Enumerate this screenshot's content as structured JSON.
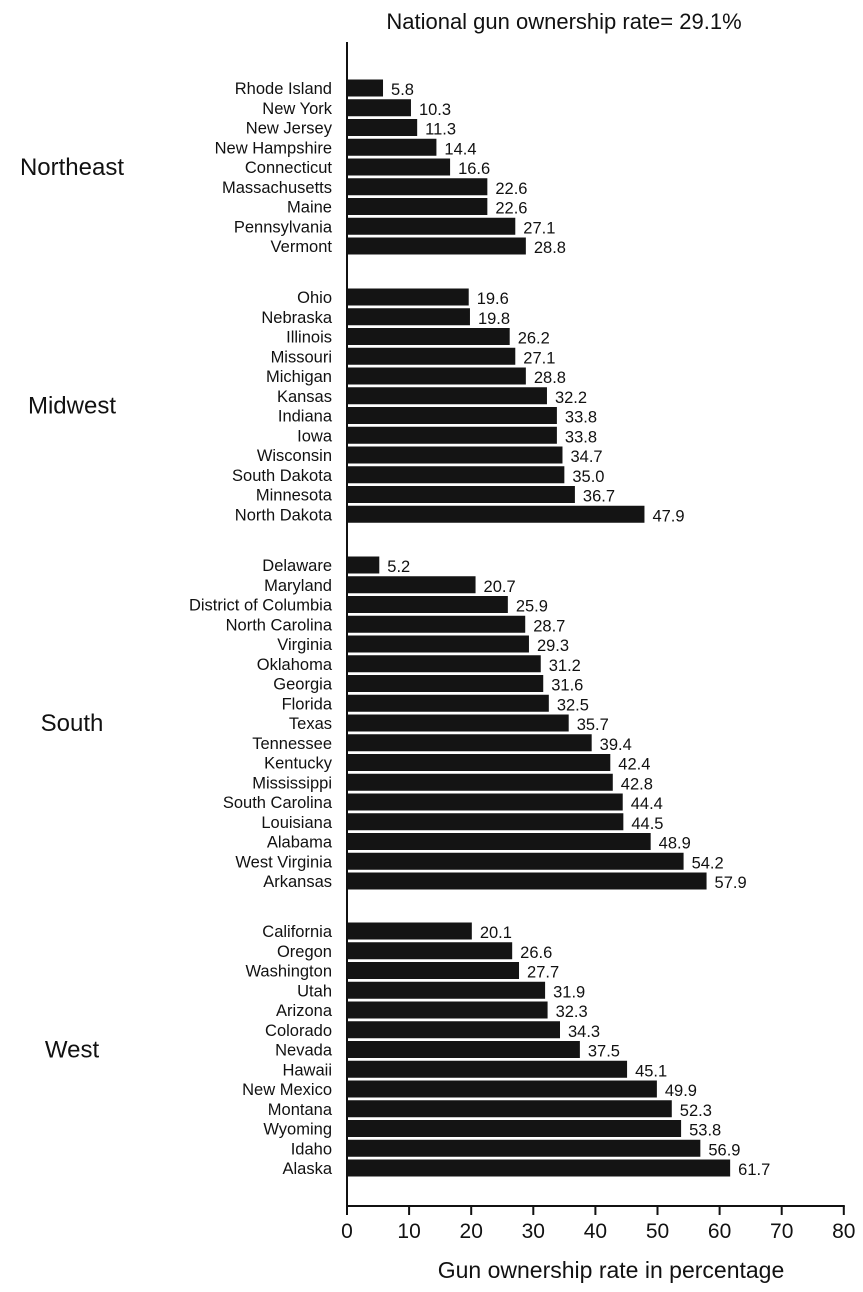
{
  "chart_data": {
    "type": "bar",
    "orientation": "horizontal",
    "title": "National gun ownership rate= 29.1%",
    "xlabel": "Gun ownership rate in percentage",
    "ylabel": "",
    "xlim": [
      0,
      80
    ],
    "xticks": [
      "0",
      "10",
      "20",
      "30",
      "40",
      "50",
      "60",
      "70",
      "80"
    ],
    "grid": false,
    "bar_color": "#141414",
    "groups": [
      {
        "name": "Northeast",
        "categories": [
          "Rhode Island",
          "New York",
          "New Jersey",
          "New Hampshire",
          "Connecticut",
          "Massachusetts",
          "Maine",
          "Pennsylvania",
          "Vermont"
        ],
        "values": [
          5.8,
          10.3,
          11.3,
          14.4,
          16.6,
          22.6,
          22.6,
          27.1,
          28.8
        ],
        "labels": [
          "5.8",
          "10.3",
          "11.3",
          "14.4",
          "16.6",
          "22.6",
          "22.6",
          "27.1",
          "28.8"
        ]
      },
      {
        "name": "Midwest",
        "categories": [
          "Ohio",
          "Nebraska",
          "Illinois",
          "Missouri",
          "Michigan",
          "Kansas",
          "Indiana",
          "Iowa",
          "Wisconsin",
          "South Dakota",
          "Minnesota",
          "North Dakota"
        ],
        "values": [
          19.6,
          19.8,
          26.2,
          27.1,
          28.8,
          32.2,
          33.8,
          33.8,
          34.7,
          35.0,
          36.7,
          47.9
        ],
        "labels": [
          "19.6",
          "19.8",
          "26.2",
          "27.1",
          "28.8",
          "32.2",
          "33.8",
          "33.8",
          "34.7",
          "35.0",
          "36.7",
          "47.9"
        ]
      },
      {
        "name": "South",
        "categories": [
          "Delaware",
          "Maryland",
          "District of Columbia",
          "North Carolina",
          "Virginia",
          "Oklahoma",
          "Georgia",
          "Florida",
          "Texas",
          "Tennessee",
          "Kentucky",
          "Mississippi",
          "South Carolina",
          "Louisiana",
          "Alabama",
          "West Virginia",
          "Arkansas"
        ],
        "values": [
          5.2,
          20.7,
          25.9,
          28.7,
          29.3,
          31.2,
          31.6,
          32.5,
          35.7,
          39.4,
          42.4,
          42.8,
          44.4,
          44.5,
          48.9,
          54.2,
          57.9
        ],
        "labels": [
          "5.2",
          "20.7",
          "25.9",
          "28.7",
          "29.3",
          "31.2",
          "31.6",
          "32.5",
          "35.7",
          "39.4",
          "42.4",
          "42.8",
          "44.4",
          "44.5",
          "48.9",
          "54.2",
          "57.9"
        ]
      },
      {
        "name": "West",
        "categories": [
          "California",
          "Oregon",
          "Washington",
          "Utah",
          "Arizona",
          "Colorado",
          "Nevada",
          "Hawaii",
          "New Mexico",
          "Montana",
          "Wyoming",
          "Idaho",
          "Alaska"
        ],
        "values": [
          20.1,
          26.6,
          27.7,
          31.9,
          32.3,
          34.3,
          37.5,
          45.1,
          49.9,
          52.3,
          53.8,
          56.9,
          61.7
        ],
        "labels": [
          "20.1",
          "26.6",
          "27.7",
          "31.9",
          "32.3",
          "34.3",
          "37.5",
          "45.1",
          "49.9",
          "52.3",
          "53.8",
          "56.9",
          "61.7"
        ]
      }
    ]
  }
}
